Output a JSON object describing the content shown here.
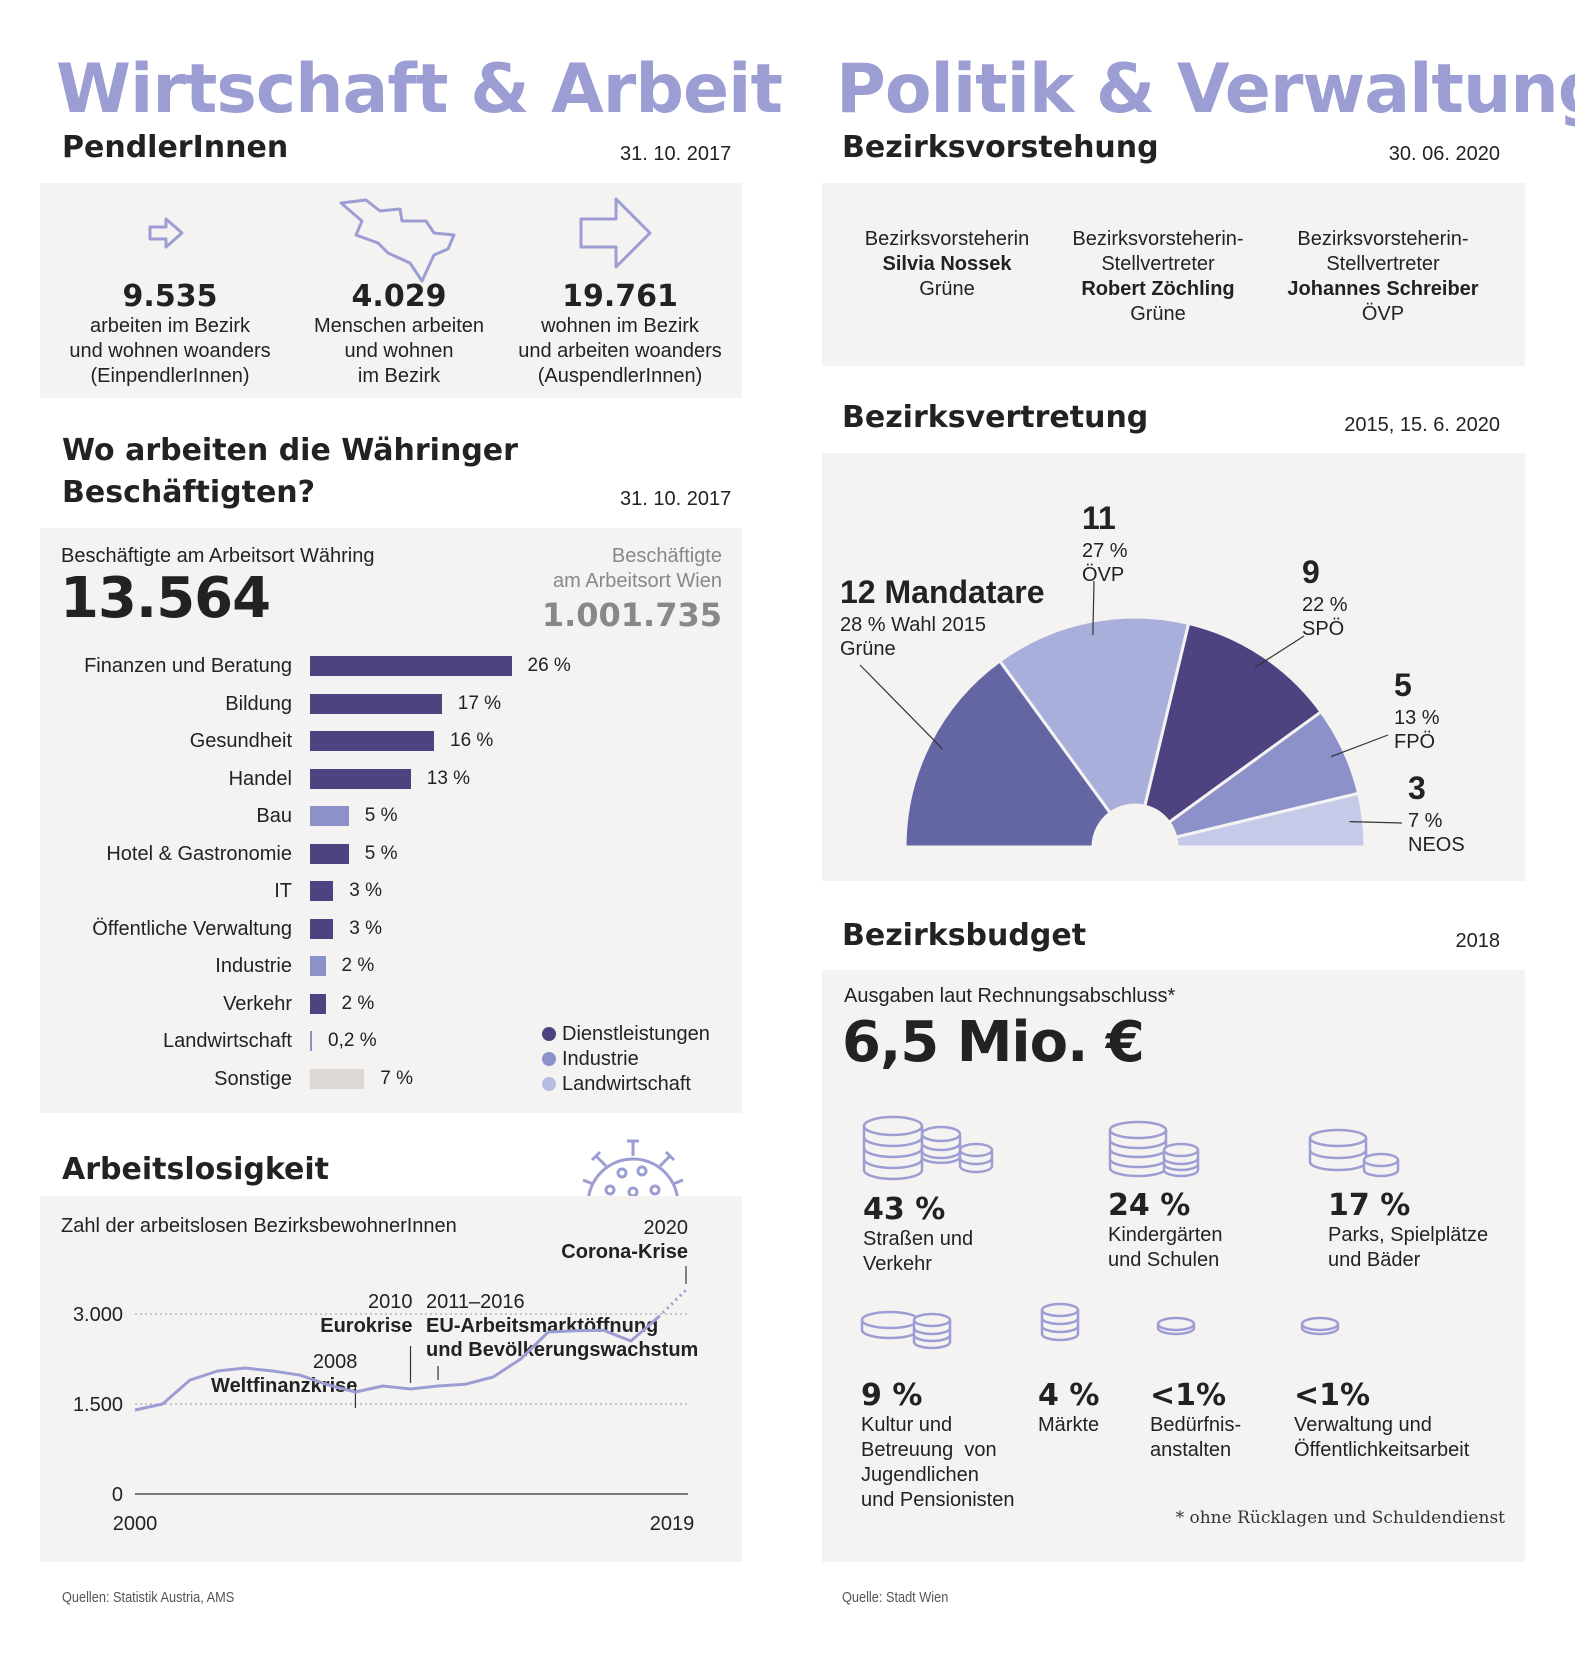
{
  "left": {
    "title": "Wirtschaft & Arbeit",
    "pendler": {
      "heading": "PendlerInnen",
      "date": "31. 10. 2017",
      "items": [
        {
          "value": "9.535",
          "lines": [
            "arbeiten im Bezirk",
            "und wohnen woanders",
            "(EinpendlerInnen)"
          ]
        },
        {
          "value": "4.029",
          "lines": [
            "Menschen arbeiten",
            "und wohnen",
            "im Bezirk"
          ]
        },
        {
          "value": "19.761",
          "lines": [
            "wohnen im Bezirk",
            "und arbeiten woanders",
            "(AuspendlerInnen)"
          ]
        }
      ]
    },
    "work": {
      "heading_line1": "Wo arbeiten die Währinger",
      "heading_line2": "Beschäftigten?",
      "date": "31. 10. 2017",
      "local_label": "Beschäftigte am Arbeitsort Währing",
      "local_value": "13.564",
      "vienna_label_line1": "Beschäftigte",
      "vienna_label_line2": "am Arbeitsort Wien",
      "vienna_value": "1.001.735",
      "legend": [
        "Dienstleistungen",
        "Industrie",
        "Landwirtschaft"
      ]
    },
    "unemployment": {
      "heading": "Arbeitslosigkeit",
      "subtitle": "Zahl der arbeitslosen BezirksbewohnerInnen"
    },
    "source": "Quellen: Statistik Austria, AMS"
  },
  "right": {
    "title": "Politik & Verwaltung",
    "vorstehung": {
      "heading": "Bezirksvorstehung",
      "date": "30. 06. 2020",
      "people": [
        {
          "role_lines": [
            "Bezirksvorsteherin"
          ],
          "name": "Silvia Nossek",
          "party": "Grüne"
        },
        {
          "role_lines": [
            "Bezirksvorsteherin-",
            "Stellvertreter"
          ],
          "name": "Robert Zöchling",
          "party": "Grüne"
        },
        {
          "role_lines": [
            "Bezirksvorsteherin-",
            "Stellvertreter"
          ],
          "name": "Johannes Schreiber",
          "party": "ÖVP"
        }
      ]
    },
    "vertretung": {
      "heading": "Bezirksvertretung",
      "date": "2015, 15. 6. 2020"
    },
    "budget": {
      "heading": "Bezirksbudget",
      "date": "2018",
      "label": "Ausgaben laut Rechnungsabschluss*",
      "value": "6,5 Mio. €",
      "items": [
        {
          "pct": "43 %",
          "lines": [
            "Straßen und",
            "Verkehr"
          ]
        },
        {
          "pct": "24 %",
          "lines": [
            "Kindergärten",
            "und Schulen"
          ]
        },
        {
          "pct": "17 %",
          "lines": [
            "Parks, Spielplätze",
            "und Bäder"
          ]
        },
        {
          "pct": "9 %",
          "lines": [
            "Kultur und",
            "Betreuung  von",
            "Jugendlichen",
            "und Pensionisten"
          ]
        },
        {
          "pct": "4 %",
          "lines": [
            "Märkte"
          ]
        },
        {
          "pct": "<1%",
          "lines": [
            "Bedürfnis-",
            "anstalten"
          ]
        },
        {
          "pct": "<1%",
          "lines": [
            "Verwaltung und",
            "Öffentlichkeitsarbeit"
          ]
        }
      ],
      "footnote": "* ohne Rücklagen und Schuldendienst"
    },
    "source": "Quelle: Stadt Wien"
  },
  "colors": {
    "accent": "#9b9dd3",
    "dark": "#4f4281",
    "mid": "#6466a3",
    "light": "#a8afdb",
    "purple2": "#8c91c9",
    "pale": "#c5cae9",
    "gray": "#dcd8d5",
    "panel": "#f5f3f2"
  },
  "chart_data": [
    {
      "type": "bar",
      "orientation": "horizontal",
      "title": "Wo arbeiten die Währinger Beschäftigten?",
      "categories": [
        "Finanzen und Beratung",
        "Bildung",
        "Gesundheit",
        "Handel",
        "Bau",
        "Hotel & Gastronomie",
        "IT",
        "Öffentliche Verwaltung",
        "Industrie",
        "Verkehr",
        "Landwirtschaft",
        "Sonstige"
      ],
      "values": [
        26,
        17,
        16,
        13,
        5,
        5,
        3,
        3,
        2,
        2,
        0.2,
        7
      ],
      "value_labels": [
        "26 %",
        "17 %",
        "16 %",
        "13 %",
        "5 %",
        "5 %",
        "3 %",
        "3 %",
        "2 %",
        "2 %",
        "0,2 %",
        "7 %"
      ],
      "groups": [
        "Dienstleistungen",
        "Dienstleistungen",
        "Dienstleistungen",
        "Dienstleistungen",
        "Industrie",
        "Dienstleistungen",
        "Dienstleistungen",
        "Dienstleistungen",
        "Industrie",
        "Dienstleistungen",
        "Landwirtschaft",
        "Sonstige"
      ],
      "unit": "%"
    },
    {
      "type": "pie",
      "subtype": "semicircle",
      "title": "Bezirksvertretung",
      "slices": [
        {
          "party": "Grüne",
          "seats": 12,
          "pct": "28 %",
          "seats_label": "12 Mandatare",
          "note": "Wahl 2015"
        },
        {
          "party": "ÖVP",
          "seats": 11,
          "pct": "27 %",
          "seats_label": "11"
        },
        {
          "party": "SPÖ",
          "seats": 9,
          "pct": "22 %",
          "seats_label": "9"
        },
        {
          "party": "FPÖ",
          "seats": 5,
          "pct": "13 %",
          "seats_label": "5"
        },
        {
          "party": "NEOS",
          "seats": 3,
          "pct": "7 %",
          "seats_label": "3"
        }
      ]
    },
    {
      "type": "line",
      "title": "Arbeitslosigkeit",
      "x": [
        2000,
        2001,
        2002,
        2003,
        2004,
        2005,
        2006,
        2007,
        2008,
        2009,
        2010,
        2011,
        2012,
        2013,
        2014,
        2015,
        2016,
        2017,
        2018,
        2019
      ],
      "values": [
        1400,
        1500,
        1900,
        2050,
        2100,
        2050,
        1980,
        1820,
        1700,
        1800,
        1750,
        1800,
        1830,
        1950,
        2250,
        2700,
        2720,
        2730,
        2550,
        2950
      ],
      "projection": {
        "x": [
          2019,
          2020
        ],
        "values": [
          2950,
          3400
        ]
      },
      "yticks": [
        0,
        1500,
        3000
      ],
      "ytick_labels": [
        "0",
        "1.500",
        "3.000"
      ],
      "xtick_labels": [
        "2000",
        "2019"
      ],
      "ylim": [
        0,
        4000
      ],
      "annotations": [
        {
          "x": 2008,
          "year": "2008",
          "label": "Weltfinanzkrise"
        },
        {
          "x": 2010,
          "year": "2010",
          "label": "Eurokrise"
        },
        {
          "x": 2011,
          "year": "2011–2016",
          "label": "EU-Arbeitsmarktöffnung und Bevölkerungswachstum"
        },
        {
          "x": 2020,
          "year": "2020",
          "label": "Corona-Krise"
        }
      ]
    }
  ]
}
